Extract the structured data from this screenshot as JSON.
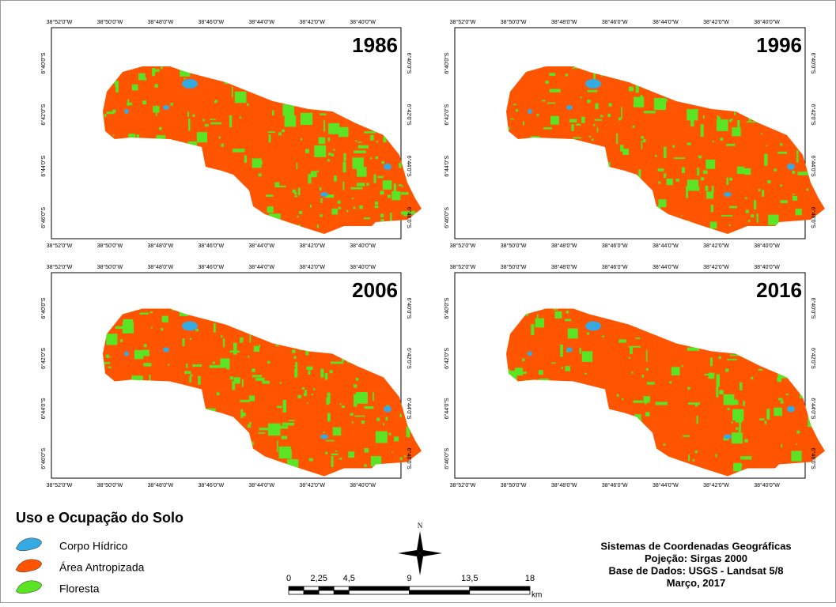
{
  "panels": [
    {
      "year": "1986"
    },
    {
      "year": "1996"
    },
    {
      "year": "2006"
    },
    {
      "year": "2016"
    }
  ],
  "coordinates": {
    "x_labels": [
      "38°52'0\"W",
      "38°50'0\"W",
      "38°48'0\"W",
      "38°46'0\"W",
      "38°44'0\"W",
      "38°42'0\"W",
      "38°40'0\"W"
    ],
    "y_labels": [
      "6°40'0\"S",
      "6°42'0\"S",
      "6°44'0\"S",
      "6°46'0\"S"
    ]
  },
  "legend": {
    "title": "Uso e Ocupação do Solo",
    "items": [
      {
        "label": "Corpo Hídrico",
        "color": "#35a9e2"
      },
      {
        "label": "Área Antropizada",
        "color": "#ff5500"
      },
      {
        "label": "Floresta",
        "color": "#5ae423"
      }
    ]
  },
  "north_arrow": {
    "label": "N"
  },
  "scale_bar": {
    "labels": [
      "0",
      "2,25",
      "4,5",
      "9",
      "13,5",
      "18"
    ],
    "unit": "km"
  },
  "credits": [
    "Sistemas de Coordenadas Geográficas",
    "Pojeção: Sirgas 2000",
    "Base de Dados: USGS - Landsat 5/8",
    "Março, 2017"
  ]
}
